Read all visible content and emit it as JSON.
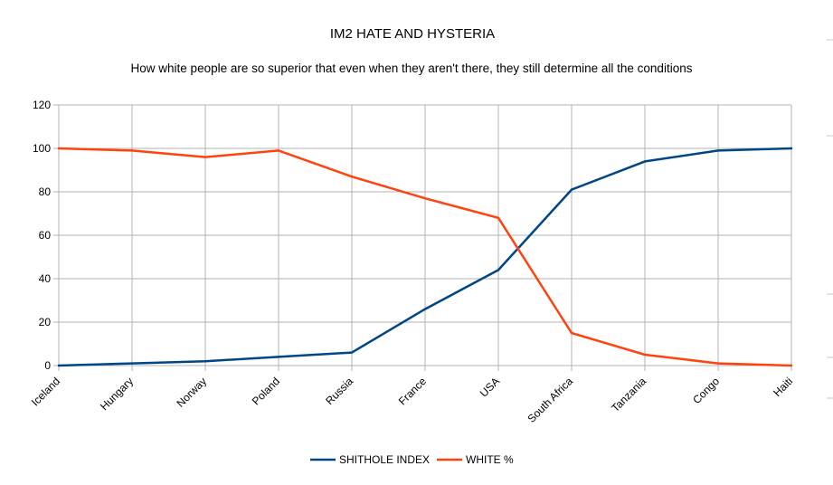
{
  "chart_data": {
    "type": "line",
    "title": "IM2 HATE AND HYSTERIA",
    "subtitle": "How white people are so superior that even when they aren't there, they still determine all the conditions",
    "xlabel": "",
    "ylabel": "",
    "categories": [
      "Iceland",
      "Hungary",
      "Norway",
      "Poland",
      "Russia",
      "France",
      "USA",
      "South Africa",
      "Tanzania",
      "Congo",
      "Haiti"
    ],
    "ylim": [
      0,
      120
    ],
    "yticks": [
      0,
      20,
      40,
      60,
      80,
      100,
      120
    ],
    "grid": true,
    "legend_position": "bottom",
    "series": [
      {
        "name": "SHITHOLE INDEX",
        "color": "#004586",
        "values": [
          0,
          1,
          2,
          4,
          6,
          26,
          44,
          81,
          94,
          99,
          100
        ]
      },
      {
        "name": "WHITE %",
        "color": "#ff420e",
        "values": [
          100,
          99,
          96,
          99,
          87,
          77,
          68,
          15,
          5,
          1,
          0
        ]
      }
    ]
  }
}
